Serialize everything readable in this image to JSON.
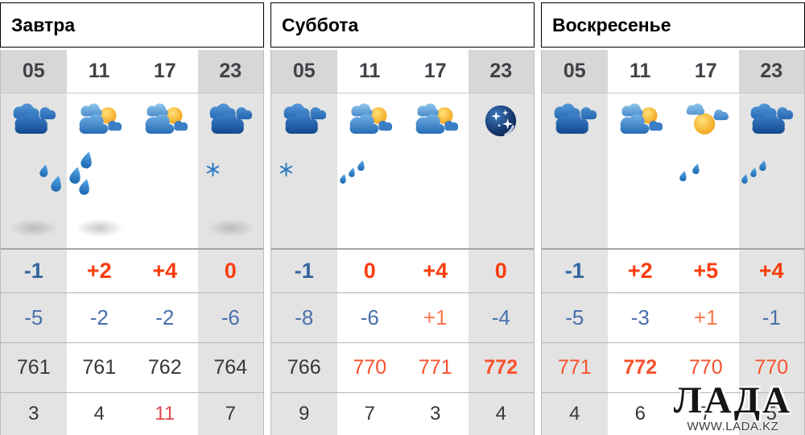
{
  "colors": {
    "header_tomorrow_bg": "#b9d6ec",
    "header_weekend_bg": "#55a8de",
    "temp_cold": "#33669d",
    "temp_warm": "#fb3c0f",
    "temp_night_cold": "#4a70ad",
    "temp_night_warm": "#f97a4f",
    "pressure_high": "#f8512e",
    "wind_alert": "#e2484d"
  },
  "watermark": {
    "title": "ЛАДА",
    "url": "WWW.LADA.KZ"
  },
  "days": [
    {
      "title": "Завтра",
      "header_style": "light",
      "columns": [
        {
          "hour": "05",
          "shade": "gray",
          "icon": "clouds",
          "precip": "rain2",
          "fog": true,
          "temp_day": {
            "value": "-1",
            "tone": "cold"
          },
          "temp_night": {
            "value": "-5",
            "tone": "cold"
          },
          "pressure": {
            "value": "761",
            "tone": "normal",
            "bold": false
          },
          "wind": {
            "value": "3",
            "tone": "normal"
          }
        },
        {
          "hour": "11",
          "shade": "white",
          "icon": "clouds-sun",
          "precip": "rain3",
          "fog": true,
          "temp_day": {
            "value": "+2",
            "tone": "warm"
          },
          "temp_night": {
            "value": "-2",
            "tone": "cold"
          },
          "pressure": {
            "value": "761",
            "tone": "normal",
            "bold": false
          },
          "wind": {
            "value": "4",
            "tone": "normal"
          }
        },
        {
          "hour": "17",
          "shade": "white",
          "icon": "clouds-sun",
          "precip": "",
          "fog": false,
          "temp_day": {
            "value": "+4",
            "tone": "warm"
          },
          "temp_night": {
            "value": "-2",
            "tone": "cold"
          },
          "pressure": {
            "value": "762",
            "tone": "normal",
            "bold": false
          },
          "wind": {
            "value": "11",
            "tone": "alert"
          }
        },
        {
          "hour": "23",
          "shade": "gray",
          "icon": "clouds",
          "precip": "snow",
          "fog": true,
          "temp_day": {
            "value": "0",
            "tone": "warm"
          },
          "temp_night": {
            "value": "-6",
            "tone": "cold"
          },
          "pressure": {
            "value": "764",
            "tone": "normal",
            "bold": false
          },
          "wind": {
            "value": "7",
            "tone": "normal"
          }
        }
      ]
    },
    {
      "title": "Суббота",
      "header_style": "blue",
      "columns": [
        {
          "hour": "05",
          "shade": "gray",
          "icon": "clouds",
          "precip": "snow",
          "fog": false,
          "temp_day": {
            "value": "-1",
            "tone": "cold"
          },
          "temp_night": {
            "value": "-8",
            "tone": "cold"
          },
          "pressure": {
            "value": "766",
            "tone": "normal",
            "bold": false
          },
          "wind": {
            "value": "9",
            "tone": "normal"
          }
        },
        {
          "hour": "11",
          "shade": "white",
          "icon": "clouds-sun",
          "precip": "drizzle3",
          "fog": false,
          "temp_day": {
            "value": "0",
            "tone": "warm"
          },
          "temp_night": {
            "value": "-6",
            "tone": "cold"
          },
          "pressure": {
            "value": "770",
            "tone": "high",
            "bold": false
          },
          "wind": {
            "value": "7",
            "tone": "normal"
          }
        },
        {
          "hour": "17",
          "shade": "white",
          "icon": "clouds-sun",
          "precip": "",
          "fog": false,
          "temp_day": {
            "value": "+4",
            "tone": "warm"
          },
          "temp_night": {
            "value": "+1",
            "tone": "warm"
          },
          "pressure": {
            "value": "771",
            "tone": "high",
            "bold": false
          },
          "wind": {
            "value": "3",
            "tone": "normal"
          }
        },
        {
          "hour": "23",
          "shade": "gray",
          "icon": "moon-stars",
          "precip": "",
          "fog": false,
          "temp_day": {
            "value": "0",
            "tone": "warm"
          },
          "temp_night": {
            "value": "-4",
            "tone": "cold"
          },
          "pressure": {
            "value": "772",
            "tone": "high",
            "bold": true
          },
          "wind": {
            "value": "4",
            "tone": "normal"
          }
        }
      ]
    },
    {
      "title": "Воскресенье",
      "header_style": "blue",
      "columns": [
        {
          "hour": "05",
          "shade": "gray",
          "icon": "clouds",
          "precip": "",
          "fog": false,
          "temp_day": {
            "value": "-1",
            "tone": "cold"
          },
          "temp_night": {
            "value": "-5",
            "tone": "cold"
          },
          "pressure": {
            "value": "771",
            "tone": "high",
            "bold": false
          },
          "wind": {
            "value": "4",
            "tone": "normal"
          }
        },
        {
          "hour": "11",
          "shade": "white",
          "icon": "clouds-sun",
          "precip": "",
          "fog": false,
          "temp_day": {
            "value": "+2",
            "tone": "warm"
          },
          "temp_night": {
            "value": "-3",
            "tone": "cold"
          },
          "pressure": {
            "value": "772",
            "tone": "high",
            "bold": true
          },
          "wind": {
            "value": "6",
            "tone": "normal"
          }
        },
        {
          "hour": "17",
          "shade": "white",
          "icon": "sun-clouds",
          "precip": "drizzle2",
          "fog": false,
          "temp_day": {
            "value": "+5",
            "tone": "warm"
          },
          "temp_night": {
            "value": "+1",
            "tone": "warm"
          },
          "pressure": {
            "value": "770",
            "tone": "high",
            "bold": false
          },
          "wind": {
            "value": "7",
            "tone": "normal"
          }
        },
        {
          "hour": "23",
          "shade": "gray",
          "icon": "clouds",
          "precip": "drizzle3",
          "fog": false,
          "temp_day": {
            "value": "+4",
            "tone": "warm"
          },
          "temp_night": {
            "value": "-1",
            "tone": "cold"
          },
          "pressure": {
            "value": "770",
            "tone": "high",
            "bold": false
          },
          "wind": {
            "value": "5",
            "tone": "normal",
            "obscured": true
          }
        }
      ]
    }
  ]
}
